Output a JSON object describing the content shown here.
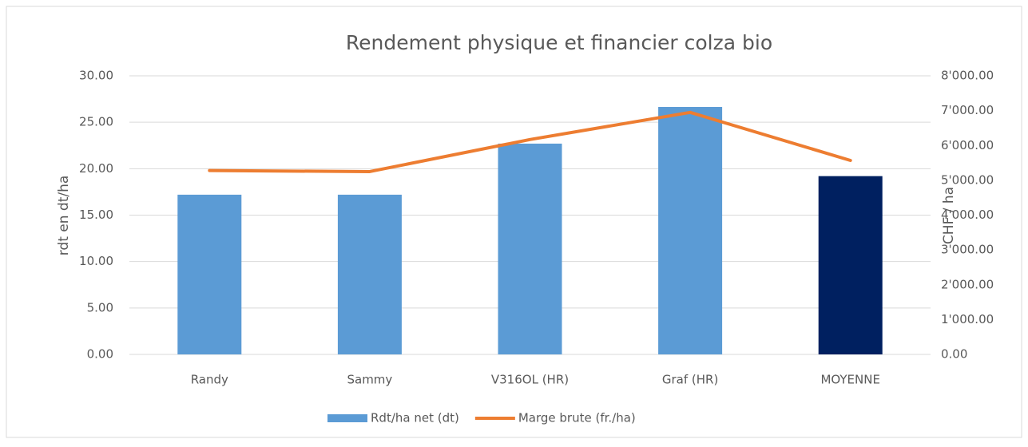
{
  "chart_data": {
    "type": "bar-line",
    "title": "Rendement physique et financier colza bio",
    "categories": [
      "Randy",
      "Sammy",
      "V316OL (HR)",
      "Graf (HR)",
      "MOYENNE"
    ],
    "ylabel": "rdt en dt/ha",
    "y2label": "CHF / ha",
    "ylim": [
      0,
      30
    ],
    "yticks": [
      {
        "value": 0,
        "label": "0.00"
      },
      {
        "value": 5,
        "label": "5.00"
      },
      {
        "value": 10,
        "label": "10.00"
      },
      {
        "value": 15,
        "label": "15.00"
      },
      {
        "value": 20,
        "label": "20.00"
      },
      {
        "value": 25,
        "label": "25.00"
      },
      {
        "value": 30,
        "label": "30.00"
      }
    ],
    "y2lim": [
      0,
      8000
    ],
    "y2ticks": [
      {
        "value": 0,
        "label": "0.00"
      },
      {
        "value": 1000,
        "label": "1'000.00"
      },
      {
        "value": 2000,
        "label": "2'000.00"
      },
      {
        "value": 3000,
        "label": "3'000.00"
      },
      {
        "value": 4000,
        "label": "4'000.00"
      },
      {
        "value": 5000,
        "label": "5'000.00"
      },
      {
        "value": 6000,
        "label": "6'000.00"
      },
      {
        "value": 7000,
        "label": "7'000.00"
      },
      {
        "value": 8000,
        "label": "8'000.00"
      }
    ],
    "grid": true,
    "legend": "bottom",
    "series": [
      {
        "name": "Rdt/ha net (dt)",
        "type": "bar",
        "color": "#5b9bd5",
        "colors": [
          "#5b9bd5",
          "#5b9bd5",
          "#5b9bd5",
          "#5b9bd5",
          "#002060"
        ],
        "values": [
          17.2,
          17.2,
          22.7,
          26.65,
          19.2
        ]
      },
      {
        "name": "Marge brute (fr./ha)",
        "type": "line",
        "axis": "y2",
        "color": "#ed7d31",
        "values": [
          5280,
          5250,
          6170,
          6950,
          5570
        ]
      }
    ]
  }
}
